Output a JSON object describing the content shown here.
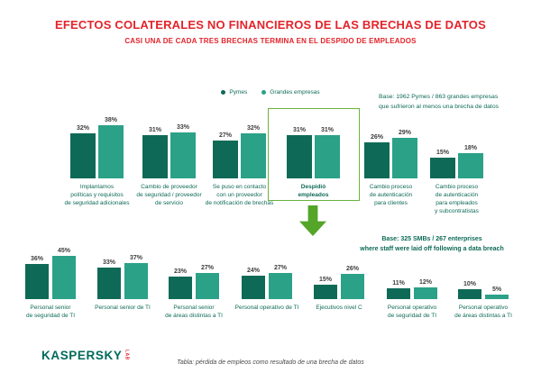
{
  "title": "EFECTOS COLATERALES NO FINANCIEROS DE LAS BRECHAS DE DATOS",
  "subtitle": "CASI UNA DE CADA TRES BRECHAS TERMINA EN EL DESPIDO DE EMPLEADOS",
  "base_top": {
    "line1": "Base: 1962 Pymes / 863 grandes empresas",
    "line2": "que sufrieron al menos una brecha de datos"
  },
  "base_bottom": {
    "line1": "Base: 325 SMBs / 267 enterprises",
    "line2": "where staff were laid off following a data breach"
  },
  "footer": {
    "caption": "Tabla: pérdida de empleos como resultado de una brecha de datos",
    "logo_text": "KASPERSKY",
    "logo_sub": "LAB"
  },
  "colors": {
    "red": "#e3242b",
    "pymes": "#0e6a57",
    "grandes": "#2ba188",
    "text_green": "#0e6a57",
    "highlight_green": "#6cb33f",
    "arrow_green": "#54a528",
    "value_gray": "#3d3d3d",
    "caption_gray": "#4a4a4a",
    "logo_green": "#006a5a"
  },
  "chart_data": [
    {
      "type": "bar",
      "unit": "%",
      "title": "Efectos colaterales no financieros de las brechas de datos",
      "categories": [
        "Implantamos\npolíticas y requisitos\nde seguridad adicionales",
        "Cambio de proveedor\nde seguridad / proveedor\nde servicio",
        "Se puso en contacto\ncon un proveedor\nde notificación de brechas",
        "Despidió\nempleados",
        "Cambio proceso\nde autenticación\npara clientes",
        "Cambio proceso\nde autenticación\npara empleados\ny subcontratistas"
      ],
      "series": [
        {
          "name": "Pymes",
          "values": [
            32,
            31,
            27,
            31,
            26,
            15
          ]
        },
        {
          "name": "Grandes empresas",
          "values": [
            38,
            33,
            32,
            31,
            29,
            18
          ]
        }
      ],
      "ylim": [
        0,
        45
      ],
      "grid": false,
      "legend_position": "top-center",
      "highlight_index": 3
    },
    {
      "type": "bar",
      "unit": "%",
      "title": "Puestos despedidos tras una brecha de datos",
      "categories": [
        "Personal senior\nde seguridad de TI",
        "Personal senior de TI",
        "Personal senior\nde áreas distintas a TI",
        "Personal operativo de TI",
        "Ejecutivos nivel C",
        "Personal operativo\nde seguridad de TI",
        "Personal operativo\nde áreas distintas a TI"
      ],
      "series": [
        {
          "name": "Pymes",
          "values": [
            36,
            33,
            23,
            24,
            15,
            11,
            10
          ]
        },
        {
          "name": "Grandes empresas",
          "values": [
            45,
            37,
            27,
            27,
            26,
            12,
            5
          ]
        }
      ],
      "ylim": [
        0,
        50
      ],
      "grid": false
    }
  ]
}
